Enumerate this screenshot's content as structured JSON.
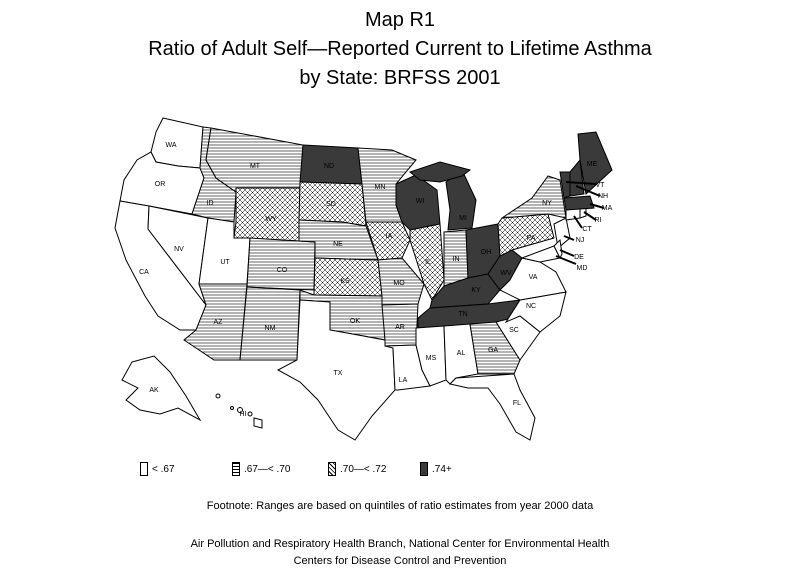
{
  "title": {
    "line1": "Map R1",
    "line2": "Ratio of Adult Self—Reported Current to Lifetime Asthma",
    "line3": "by State: BRFSS 2001"
  },
  "legend": [
    {
      "label": "< .67",
      "pattern": "white"
    },
    {
      "label": ".67—< .70",
      "pattern": "hlines"
    },
    {
      "label": ".70—< .72",
      "pattern": "cross"
    },
    {
      "label": ".74+",
      "pattern": "dark"
    }
  ],
  "footnote": "Footnote: Ranges are based on quintiles of ratio estimates from year 2000 data",
  "credit_line1": "Air Pollution and Respiratory Health Branch, National Center for Environmental Health",
  "credit_line2": "Centers for Disease Control and Prevention",
  "colors": {
    "dark": "#3a3a3a",
    "white": "#ffffff",
    "line": "#000000"
  },
  "states": {
    "WA": "WA",
    "OR": "OR",
    "CA": "CA",
    "NV": "NV",
    "ID": "ID",
    "MT": "MT",
    "WY": "WY",
    "UT": "UT",
    "AZ": "AZ",
    "CO": "CO",
    "NM": "NM",
    "ND": "ND",
    "SD": "SD",
    "NE": "NE",
    "KS": "KS",
    "OK": "OK",
    "TX": "TX",
    "MN": "MN",
    "IA": "IA",
    "MO": "MO",
    "AR": "AR",
    "LA": "LA",
    "WI": "WI",
    "IL": "IL",
    "MI": "MI",
    "IN": "IN",
    "OH": "OH",
    "KY": "KY",
    "TN": "TN",
    "MS": "MS",
    "AL": "AL",
    "GA": "GA",
    "FL": "FL",
    "SC": "SC",
    "NC": "NC",
    "VA": "VA",
    "WV": "WV",
    "PA": "PA",
    "NY": "NY",
    "ME": "ME",
    "VT": "VT",
    "NH": "NH",
    "MA": "MA",
    "RI": "RI",
    "CT": "CT",
    "NJ": "NJ",
    "DE": "DE",
    "MD": "MD",
    "AK": "AK",
    "HI": "HI"
  }
}
